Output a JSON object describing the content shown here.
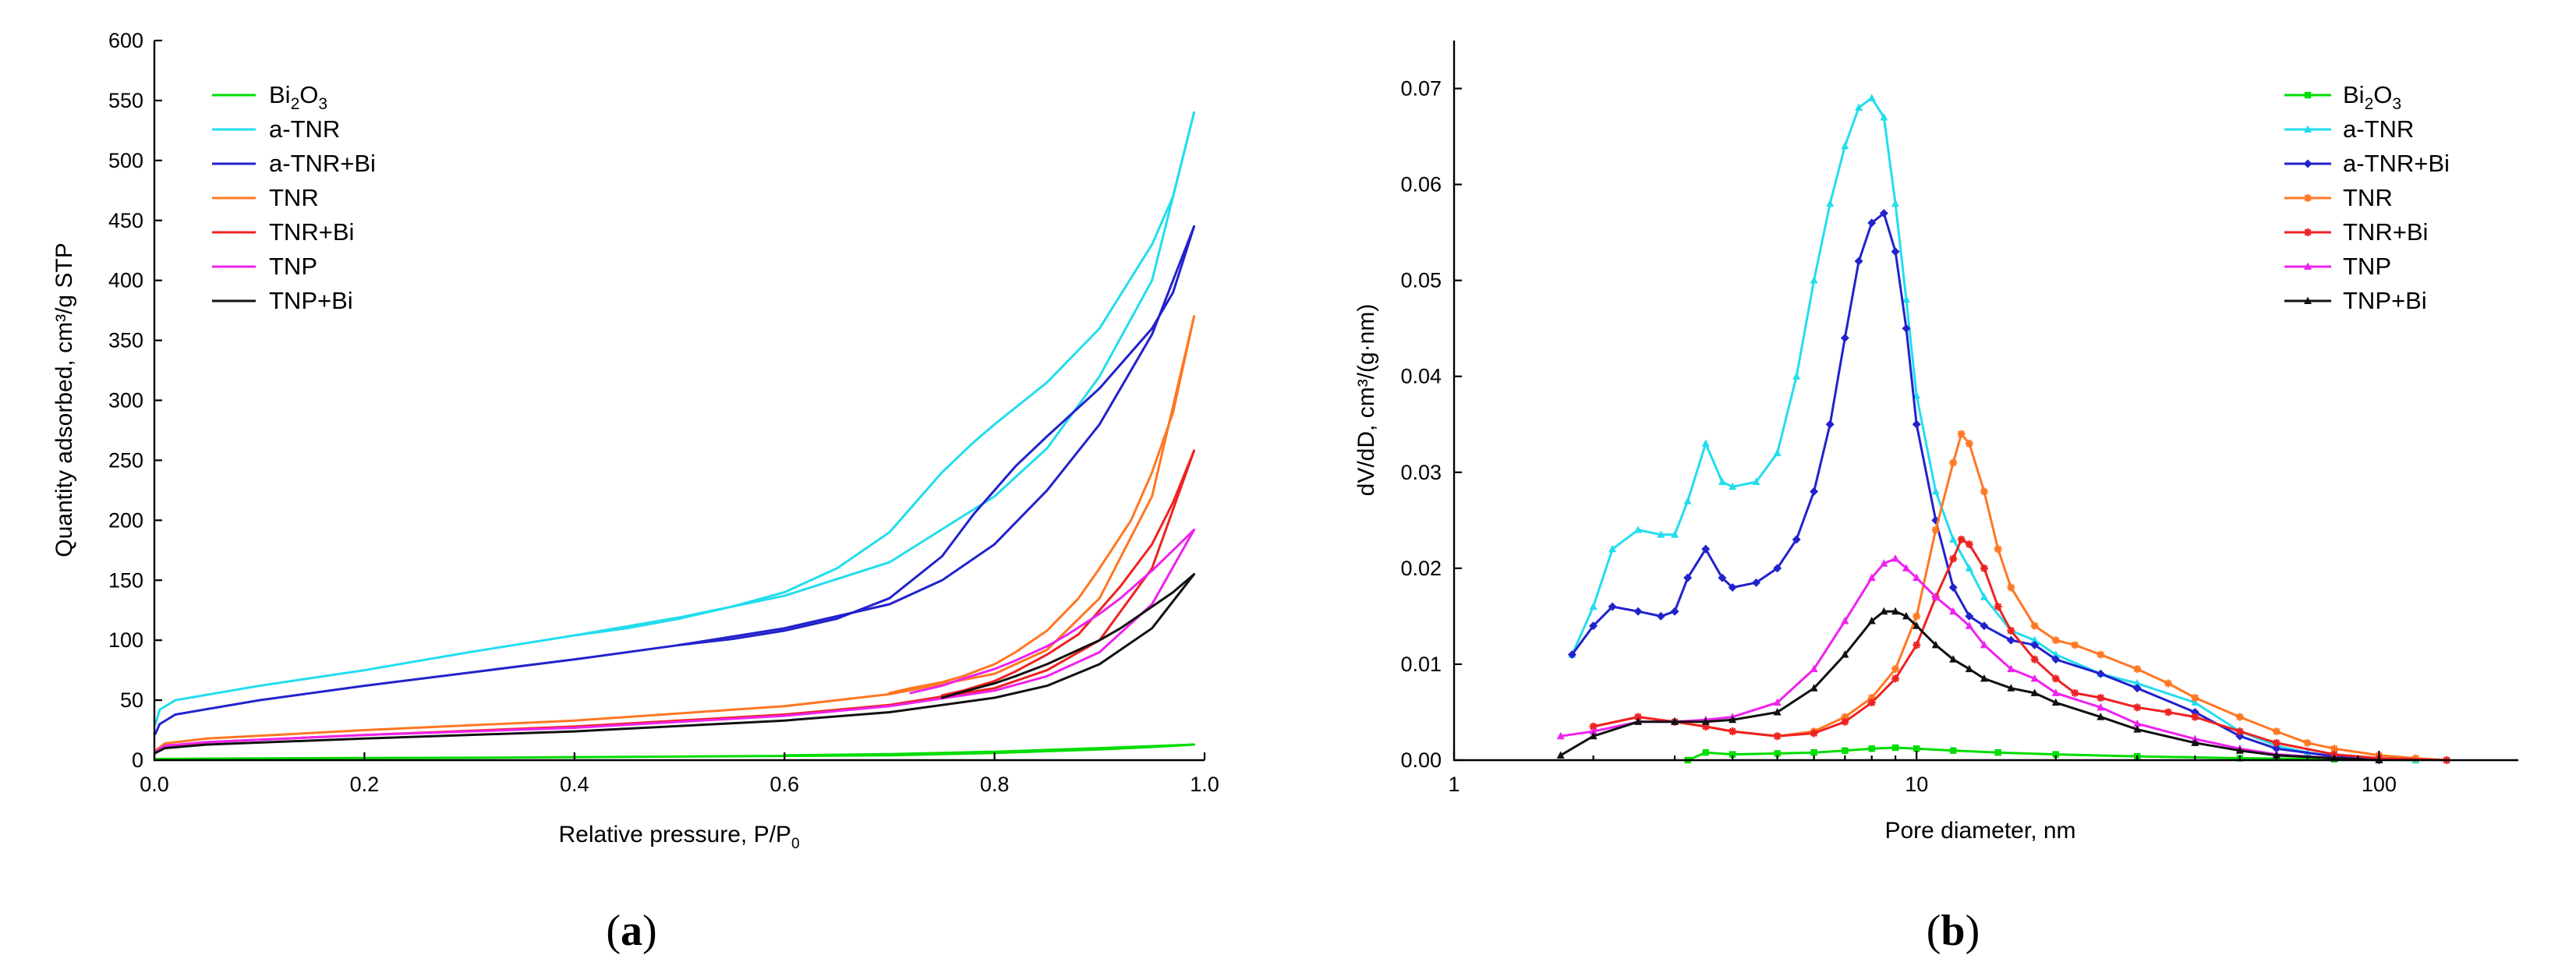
{
  "figure": {
    "caption_a_open": "(",
    "caption_a_letter": "a",
    "caption_a_close": ")",
    "caption_b_open": "(",
    "caption_b_letter": "b",
    "caption_b_close": ")"
  },
  "chart_data": [
    {
      "type": "line",
      "title": "",
      "xlabel": "Relative pressure, P/P",
      "xlabel_sub": "0",
      "ylabel": "Quantity adsorbed, cm³/g STP",
      "xlim": [
        0,
        1.0
      ],
      "ylim": [
        0,
        600
      ],
      "xticks": [
        "0.0",
        "0.2",
        "0.4",
        "0.6",
        "0.8",
        "1.0"
      ],
      "xtick_values": [
        0,
        0.2,
        0.4,
        0.6,
        0.8,
        1.0
      ],
      "yticks": [
        "0",
        "50",
        "100",
        "150",
        "200",
        "250",
        "300",
        "350",
        "400",
        "450",
        "500",
        "550",
        "600"
      ],
      "ytick_values": [
        0,
        50,
        100,
        150,
        200,
        250,
        300,
        350,
        400,
        450,
        500,
        550,
        600
      ],
      "legend_position": "top-left",
      "series": [
        {
          "name": "Bi",
          "sub": "2",
          "name2": "O",
          "sub2": "3",
          "color": "#00dd00",
          "adsorption": {
            "x": [
              0.001,
              0.1,
              0.3,
              0.5,
              0.7,
              0.8,
              0.9,
              0.95,
              0.99
            ],
            "y": [
              1,
              1.5,
              2,
              3,
              4,
              6,
              9,
              11,
              13
            ]
          },
          "desorption": {
            "x": [
              0.99,
              0.9,
              0.8,
              0.7,
              0.6
            ],
            "y": [
              13,
              10,
              7,
              5,
              4
            ]
          }
        },
        {
          "name": "a-TNR",
          "color": "#22ddee",
          "adsorption": {
            "x": [
              0.001,
              0.005,
              0.02,
              0.1,
              0.2,
              0.3,
              0.4,
              0.5,
              0.6,
              0.7,
              0.8,
              0.85,
              0.9,
              0.95,
              0.99
            ],
            "y": [
              30,
              42,
              50,
              62,
              75,
              90,
              104,
              119,
              137,
              165,
              220,
              260,
              320,
              400,
              540
            ]
          },
          "desorption": {
            "x": [
              0.99,
              0.97,
              0.95,
              0.9,
              0.85,
              0.8,
              0.78,
              0.75,
              0.7,
              0.65,
              0.6,
              0.55,
              0.5,
              0.45,
              0.4
            ],
            "y": [
              540,
              470,
              430,
              360,
              315,
              280,
              265,
              240,
              190,
              160,
              140,
              128,
              118,
              110,
              104
            ]
          }
        },
        {
          "name": "a-TNR+Bi",
          "color": "#2222cc",
          "adsorption": {
            "x": [
              0.001,
              0.005,
              0.02,
              0.1,
              0.2,
              0.3,
              0.4,
              0.5,
              0.6,
              0.7,
              0.75,
              0.8,
              0.85,
              0.9,
              0.95,
              0.99
            ],
            "y": [
              22,
              30,
              38,
              50,
              62,
              73,
              84,
              96,
              110,
              130,
              150,
              180,
              225,
              280,
              355,
              445
            ]
          },
          "desorption": {
            "x": [
              0.99,
              0.97,
              0.95,
              0.9,
              0.85,
              0.82,
              0.8,
              0.78,
              0.75,
              0.7,
              0.65,
              0.6,
              0.55,
              0.5
            ],
            "y": [
              445,
              390,
              360,
              310,
              270,
              245,
              225,
              205,
              170,
              135,
              118,
              108,
              101,
              96
            ]
          }
        },
        {
          "name": "TNR",
          "color": "#ff7722",
          "adsorption": {
            "x": [
              0.001,
              0.01,
              0.05,
              0.2,
              0.4,
              0.6,
              0.7,
              0.8,
              0.85,
              0.9,
              0.95,
              0.99
            ],
            "y": [
              8,
              14,
              18,
              25,
              33,
              45,
              55,
              72,
              92,
              135,
              220,
              370
            ]
          },
          "desorption": {
            "x": [
              0.99,
              0.97,
              0.95,
              0.93,
              0.9,
              0.88,
              0.85,
              0.82,
              0.8,
              0.77,
              0.75,
              0.72,
              0.7
            ],
            "y": [
              370,
              290,
              240,
              200,
              160,
              135,
              108,
              90,
              80,
              70,
              65,
              60,
              56
            ]
          }
        },
        {
          "name": "TNR+Bi",
          "color": "#ee2222",
          "adsorption": {
            "x": [
              0.001,
              0.01,
              0.05,
              0.2,
              0.4,
              0.6,
              0.7,
              0.8,
              0.85,
              0.9,
              0.95,
              0.99
            ],
            "y": [
              6,
              11,
              15,
              21,
              28,
              38,
              46,
              60,
              75,
              100,
              160,
              258
            ]
          },
          "desorption": {
            "x": [
              0.99,
              0.97,
              0.95,
              0.92,
              0.9,
              0.88,
              0.85,
              0.82,
              0.8,
              0.77,
              0.75
            ],
            "y": [
              258,
              215,
              180,
              145,
              125,
              105,
              88,
              74,
              66,
              58,
              54
            ]
          }
        },
        {
          "name": "TNP",
          "color": "#ee22ee",
          "adsorption": {
            "x": [
              0.001,
              0.01,
              0.05,
              0.2,
              0.4,
              0.6,
              0.7,
              0.8,
              0.85,
              0.9,
              0.95,
              0.99
            ],
            "y": [
              7,
              12,
              15,
              21,
              27,
              37,
              45,
              58,
              70,
              90,
              130,
              192
            ]
          },
          "desorption": {
            "x": [
              0.99,
              0.97,
              0.95,
              0.92,
              0.9,
              0.87,
              0.85,
              0.82,
              0.8,
              0.77,
              0.75,
              0.72
            ],
            "y": [
              192,
              175,
              158,
              135,
              122,
              105,
              95,
              83,
              76,
              68,
              62,
              56
            ]
          }
        },
        {
          "name": "TNP+Bi",
          "color": "#111111",
          "adsorption": {
            "x": [
              0.001,
              0.01,
              0.05,
              0.2,
              0.4,
              0.6,
              0.7,
              0.8,
              0.85,
              0.9,
              0.95,
              0.99
            ],
            "y": [
              6,
              10,
              13,
              18,
              24,
              33,
              40,
              52,
              62,
              80,
              110,
              155
            ]
          },
          "desorption": {
            "x": [
              0.99,
              0.97,
              0.95,
              0.92,
              0.9,
              0.87,
              0.85,
              0.82,
              0.8,
              0.77,
              0.75
            ],
            "y": [
              155,
              140,
              128,
              110,
              100,
              88,
              80,
              70,
              64,
              57,
              52
            ]
          }
        }
      ]
    },
    {
      "type": "line",
      "title": "",
      "xlabel": "Pore diameter, nm",
      "ylabel": "dV/dD, cm³/(g·nm)",
      "xscale": "log",
      "xlim": [
        1,
        200
      ],
      "ylim": [
        0,
        0.075
      ],
      "xticks": [
        "1",
        "10",
        "100"
      ],
      "xtick_values": [
        1,
        10,
        100
      ],
      "yticks": [
        "0.00",
        "0.01",
        "0.02",
        "0.03",
        "0.04",
        "0.05",
        "0.06",
        "0.07"
      ],
      "ytick_values": [
        0,
        0.01,
        0.02,
        0.03,
        0.04,
        0.05,
        0.06,
        0.07
      ],
      "legend_position": "top-right",
      "series": [
        {
          "name": "Bi",
          "sub": "2",
          "name2": "O",
          "sub2": "3",
          "color": "#00dd00",
          "marker": "square",
          "x": [
            3.2,
            3.5,
            4,
            5,
            6,
            7,
            8,
            9,
            10,
            12,
            15,
            20,
            30,
            50,
            80,
            120
          ],
          "y": [
            0.0,
            0.0008,
            0.0006,
            0.0007,
            0.0008,
            0.001,
            0.0012,
            0.0013,
            0.0012,
            0.001,
            0.0008,
            0.0006,
            0.0004,
            0.0002,
            0.0001,
            0.0
          ]
        },
        {
          "name": "a-TNR",
          "color": "#22ddee",
          "marker": "triangle",
          "x": [
            1.8,
            2.0,
            2.2,
            2.5,
            2.8,
            3.0,
            3.2,
            3.5,
            3.8,
            4.0,
            4.5,
            5.0,
            5.5,
            6.0,
            6.5,
            7.0,
            7.5,
            8.0,
            8.5,
            9.0,
            9.5,
            10,
            11,
            12,
            13,
            14,
            16,
            18,
            20,
            25,
            30,
            40,
            50,
            60,
            70,
            80,
            100,
            120
          ],
          "y": [
            0.011,
            0.016,
            0.022,
            0.024,
            0.0235,
            0.0235,
            0.027,
            0.033,
            0.029,
            0.0285,
            0.029,
            0.032,
            0.04,
            0.05,
            0.058,
            0.064,
            0.068,
            0.069,
            0.067,
            0.058,
            0.048,
            0.038,
            0.028,
            0.023,
            0.02,
            0.017,
            0.0135,
            0.0125,
            0.011,
            0.009,
            0.008,
            0.006,
            0.003,
            0.0015,
            0.0008,
            0.0004,
            0.0001,
            0.0
          ]
        },
        {
          "name": "a-TNR+Bi",
          "color": "#2222cc",
          "marker": "diamond",
          "x": [
            1.8,
            2.0,
            2.2,
            2.5,
            2.8,
            3.0,
            3.2,
            3.5,
            3.8,
            4.0,
            4.5,
            5.0,
            5.5,
            6.0,
            6.5,
            7.0,
            7.5,
            8.0,
            8.5,
            9.0,
            9.5,
            10,
            11,
            12,
            13,
            14,
            16,
            18,
            20,
            25,
            30,
            40,
            50,
            60,
            80,
            100
          ],
          "y": [
            0.011,
            0.014,
            0.016,
            0.0155,
            0.015,
            0.0155,
            0.019,
            0.022,
            0.019,
            0.018,
            0.0185,
            0.02,
            0.023,
            0.028,
            0.035,
            0.044,
            0.052,
            0.056,
            0.057,
            0.053,
            0.045,
            0.035,
            0.025,
            0.018,
            0.015,
            0.014,
            0.0125,
            0.012,
            0.0105,
            0.009,
            0.0075,
            0.005,
            0.0025,
            0.0012,
            0.0004,
            0.0
          ]
        },
        {
          "name": "TNR",
          "color": "#ff7722",
          "marker": "star",
          "x": [
            2.0,
            2.5,
            3.0,
            3.5,
            4.0,
            5.0,
            6.0,
            7.0,
            8.0,
            9.0,
            10,
            11,
            12,
            12.5,
            13,
            14,
            15,
            16,
            18,
            20,
            22,
            25,
            30,
            35,
            40,
            50,
            60,
            70,
            80,
            100,
            120,
            140
          ],
          "y": [
            0.0035,
            0.0045,
            0.004,
            0.0035,
            0.003,
            0.0025,
            0.003,
            0.0045,
            0.0065,
            0.0095,
            0.015,
            0.024,
            0.031,
            0.034,
            0.033,
            0.028,
            0.022,
            0.018,
            0.014,
            0.0125,
            0.012,
            0.011,
            0.0095,
            0.008,
            0.0065,
            0.0045,
            0.003,
            0.0018,
            0.0012,
            0.0005,
            0.0002,
            0.0
          ]
        },
        {
          "name": "TNR+Bi",
          "color": "#ee2222",
          "marker": "star",
          "x": [
            2.0,
            2.5,
            3.0,
            3.5,
            4.0,
            5.0,
            6.0,
            7.0,
            8.0,
            9.0,
            10,
            11,
            12,
            12.5,
            13,
            14,
            15,
            16,
            18,
            20,
            22,
            25,
            30,
            35,
            40,
            50,
            60,
            80,
            100,
            140
          ],
          "y": [
            0.0035,
            0.0045,
            0.004,
            0.0035,
            0.003,
            0.0025,
            0.0028,
            0.004,
            0.006,
            0.0085,
            0.012,
            0.017,
            0.021,
            0.023,
            0.0225,
            0.02,
            0.016,
            0.0135,
            0.0105,
            0.0085,
            0.007,
            0.0065,
            0.0055,
            0.005,
            0.0045,
            0.003,
            0.0018,
            0.0006,
            0.0002,
            0.0
          ]
        },
        {
          "name": "TNP",
          "color": "#ee22ee",
          "marker": "triangle",
          "x": [
            1.7,
            2.0,
            2.5,
            3.0,
            3.5,
            4.0,
            5.0,
            6.0,
            7.0,
            8.0,
            8.5,
            9.0,
            9.5,
            10,
            11,
            12,
            13,
            14,
            16,
            18,
            20,
            25,
            30,
            40,
            50,
            60,
            80,
            100
          ],
          "y": [
            0.0025,
            0.003,
            0.004,
            0.004,
            0.0042,
            0.0045,
            0.006,
            0.0095,
            0.0145,
            0.019,
            0.0205,
            0.021,
            0.02,
            0.019,
            0.017,
            0.0155,
            0.014,
            0.012,
            0.0095,
            0.0085,
            0.007,
            0.0055,
            0.0038,
            0.0022,
            0.0012,
            0.0006,
            0.0002,
            0.0
          ]
        },
        {
          "name": "TNP+Bi",
          "color": "#111111",
          "marker": "triangle",
          "x": [
            1.7,
            2.0,
            2.5,
            3.0,
            3.5,
            4.0,
            5.0,
            6.0,
            7.0,
            8.0,
            8.5,
            9.0,
            9.5,
            10,
            11,
            12,
            13,
            14,
            16,
            18,
            20,
            25,
            30,
            40,
            50,
            60,
            80,
            100
          ],
          "y": [
            0.0005,
            0.0025,
            0.004,
            0.004,
            0.004,
            0.0042,
            0.005,
            0.0075,
            0.011,
            0.0145,
            0.0155,
            0.0155,
            0.015,
            0.014,
            0.012,
            0.0105,
            0.0095,
            0.0085,
            0.0075,
            0.007,
            0.006,
            0.0045,
            0.0032,
            0.0018,
            0.001,
            0.0005,
            0.0002,
            0.0
          ]
        }
      ]
    }
  ]
}
